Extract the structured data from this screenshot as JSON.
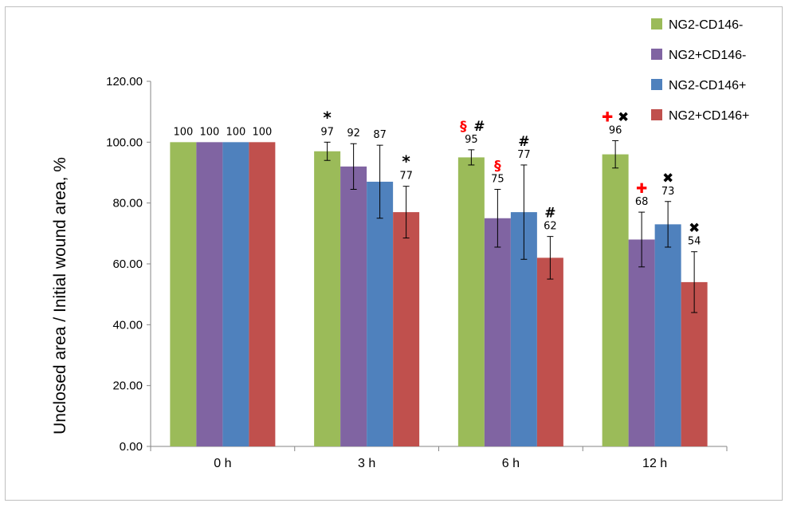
{
  "chart_data": {
    "type": "bar",
    "ylabel": "Unclosed area / Initial wound area, %",
    "xlabel": "",
    "ylim": [
      0,
      120
    ],
    "yticks": [
      "0.00",
      "20.00",
      "40.00",
      "60.00",
      "80.00",
      "100.00",
      "120.00"
    ],
    "categories": [
      "0 h",
      "3 h",
      "6 h",
      "12 h"
    ],
    "legend_position": "top-right",
    "series": [
      {
        "name": "NG2-CD146-",
        "color": "#9bbb59",
        "values": [
          100,
          97,
          95,
          96
        ],
        "error": [
          0,
          3,
          2.5,
          4.5
        ],
        "labels": [
          "100",
          "97",
          "95",
          "96"
        ]
      },
      {
        "name": "NG2+CD146-",
        "color": "#8064a2",
        "values": [
          100,
          92,
          75,
          68
        ],
        "error": [
          0,
          7.5,
          9.5,
          9
        ],
        "labels": [
          "100",
          "92",
          "75",
          "68"
        ]
      },
      {
        "name": "NG2-CD146+",
        "color": "#4f81bd",
        "values": [
          100,
          87,
          77,
          73
        ],
        "error": [
          0,
          12,
          15.5,
          7.5
        ],
        "labels": [
          "100",
          "87",
          "77",
          "73"
        ]
      },
      {
        "name": "NG2+CD146+",
        "color": "#c0504d",
        "values": [
          100,
          77,
          62,
          54
        ],
        "error": [
          0,
          8.5,
          7,
          10
        ],
        "labels": [
          "100",
          "77",
          "62",
          "54"
        ]
      }
    ],
    "annotations": [
      {
        "category": 1,
        "series": 0,
        "marks": [
          {
            "text": "*",
            "color": "#000000"
          }
        ]
      },
      {
        "category": 1,
        "series": 3,
        "marks": [
          {
            "text": "*",
            "color": "#000000"
          }
        ]
      },
      {
        "category": 2,
        "series": 0,
        "marks": [
          {
            "text": "§",
            "color": "#ff0000"
          },
          {
            "text": "#",
            "color": "#000000"
          }
        ]
      },
      {
        "category": 2,
        "series": 1,
        "marks": [
          {
            "text": "§",
            "color": "#ff0000"
          }
        ]
      },
      {
        "category": 2,
        "series": 2,
        "marks": [
          {
            "text": "#",
            "color": "#000000"
          }
        ]
      },
      {
        "category": 2,
        "series": 3,
        "marks": [
          {
            "text": "#",
            "color": "#000000"
          }
        ]
      },
      {
        "category": 3,
        "series": 0,
        "marks": [
          {
            "text": "✚",
            "color": "#ff0000"
          },
          {
            "text": "✖",
            "color": "#000000"
          }
        ]
      },
      {
        "category": 3,
        "series": 1,
        "marks": [
          {
            "text": "✚",
            "color": "#ff0000"
          }
        ]
      },
      {
        "category": 3,
        "series": 2,
        "marks": [
          {
            "text": "✖",
            "color": "#000000"
          }
        ]
      },
      {
        "category": 3,
        "series": 3,
        "marks": [
          {
            "text": "✖",
            "color": "#000000"
          }
        ]
      }
    ]
  }
}
